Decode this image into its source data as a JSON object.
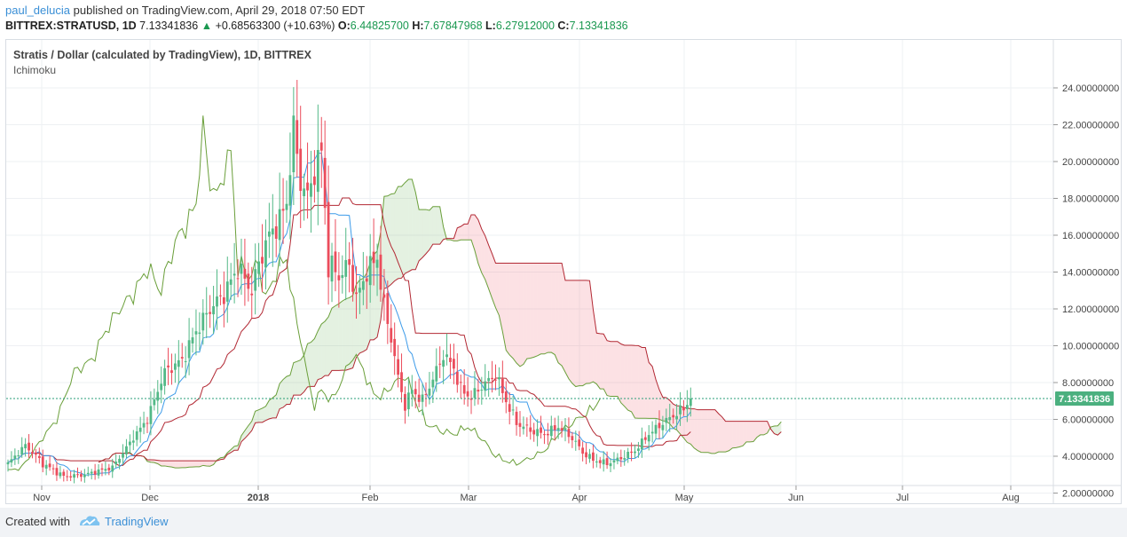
{
  "header": {
    "user": "paul_delucia",
    "published_text": "published on TradingView.com, April 29, 2018 07:50 EDT",
    "symbol": "BITTREX:STRATUSD, 1D",
    "last": "7.13341836",
    "change": "+0.68563300 (+10.63%)",
    "o_label": "O:",
    "o_val": "6.44825700",
    "h_label": "H:",
    "h_val": "7.67847968",
    "l_label": "L:",
    "l_val": "6.27912000",
    "c_label": "C:",
    "c_val": "7.13341836"
  },
  "chart": {
    "title": "Stratis / Dollar (calculated by TradingView), 1D, BITTREX",
    "indicator": "Ichimoku",
    "price_tag": "7.13341836",
    "colors": {
      "up": "#53b987",
      "down": "#eb4d5c",
      "tenkan": "#3d9be9",
      "kijun": "#b22833",
      "chikou": "#6a9f3a",
      "span_line": "#6a9f3a",
      "cloud_bull": "rgba(106,180,90,0.18)",
      "cloud_bear": "rgba(240,120,130,0.22)",
      "grid": "#eef0f3",
      "axis_text": "#444"
    }
  },
  "chart_data": {
    "type": "candlestick",
    "title": "Stratis / Dollar (calculated by TradingView), 1D, BITTREX",
    "ylim": [
      1.0,
      25.3
    ],
    "y_ticks": [
      "24.00000000",
      "22.00000000",
      "20.00000000",
      "18.00000000",
      "16.00000000",
      "14.00000000",
      "12.00000000",
      "10.00000000",
      "8.00000000",
      "6.00000000",
      "4.00000000",
      "2.00000000"
    ],
    "x_ticks": [
      "Nov",
      "Dec",
      "2018",
      "Feb",
      "Mar",
      "Apr",
      "May",
      "Jun",
      "Jul",
      "Aug"
    ],
    "last_close": 7.13341836
  },
  "footer": {
    "created_with": "Created with",
    "brand": "TradingView"
  }
}
